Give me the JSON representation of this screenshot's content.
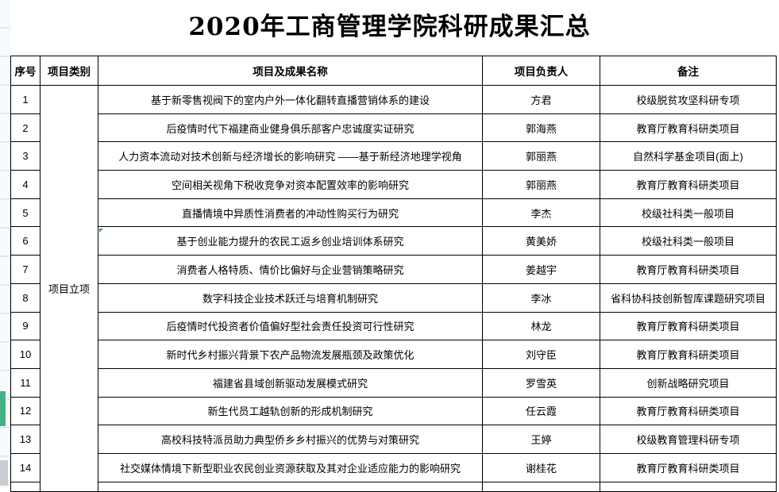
{
  "page": {
    "title": "2020年工商管理学院科研成果汇总"
  },
  "table": {
    "headers": [
      "序号",
      "项目类别",
      "项目及成果名称",
      "项目负责人",
      "备注"
    ],
    "category_label": "项目立项",
    "rows": [
      {
        "no": "1",
        "name": "基于新零售视阀下的室内户外一体化翻转直播营销体系的建设",
        "leader": "方君",
        "note": "校级脱贫攻坚科研专项"
      },
      {
        "no": "2",
        "name": "后疫情时代下福建商业健身俱乐部客户忠诚度实证研究",
        "leader": "郭海燕",
        "note": "教育厅教育科研类项目"
      },
      {
        "no": "3",
        "name": "人力资本流动对技术创新与经济增长的影响研究 ——基于新经济地理学视角",
        "leader": "郭丽燕",
        "note": "自然科学基金项目(面上)"
      },
      {
        "no": "4",
        "name": "空间相关视角下税收竞争对资本配置效率的影响研究",
        "leader": "郭丽燕",
        "note": "教育厅教育科研类项目"
      },
      {
        "no": "5",
        "name": "直播情境中异质性消费者的冲动性购买行为研究",
        "leader": "李杰",
        "note": "校级社科类一般项目"
      },
      {
        "no": "6",
        "name": "基于创业能力提升的农民工返乡创业培训体系研究",
        "leader": "黄美娇",
        "note": "校级社科类一般项目"
      },
      {
        "no": "7",
        "name": "消费者人格特质、情价比偏好与企业营销策略研究",
        "leader": "姜越宇",
        "note": "教育厅教育科研类项目"
      },
      {
        "no": "8",
        "name": "数字科技企业技术跃迁与培育机制研究",
        "leader": "李冰",
        "note": "省科协科技创新智库课题研究项目"
      },
      {
        "no": "9",
        "name": "后疫情时代投资者价值偏好型社会责任投资可行性研究",
        "leader": "林龙",
        "note": "教育厅教育科研类项目"
      },
      {
        "no": "10",
        "name": "新时代乡村振兴背景下农产品物流发展瓶颈及政策优化",
        "leader": "刘守臣",
        "note": "教育厅教育科研类项目"
      },
      {
        "no": "11",
        "name": "福建省县域创新驱动发展模式研究",
        "leader": "罗雪英",
        "note": "创新战略研究项目"
      },
      {
        "no": "12",
        "name": "新生代员工越轨创新的形成机制研究",
        "leader": "任云霞",
        "note": "教育厅教育科研类项目"
      },
      {
        "no": "13",
        "name": "高校科技特派员助力典型侨乡乡村振兴的优势与对策研究",
        "leader": "王婷",
        "note": "校级教育管理科研专项"
      },
      {
        "no": "14",
        "name": "社交媒体情境下新型职业农民创业资源获取及其对企业适应能力的影响研究",
        "leader": "谢桂花",
        "note": "教育厅教育科研类项目"
      }
    ]
  },
  "decorations": {
    "comment_marker_color": "#2e9e57",
    "selection_bar_color": "#44b283"
  }
}
